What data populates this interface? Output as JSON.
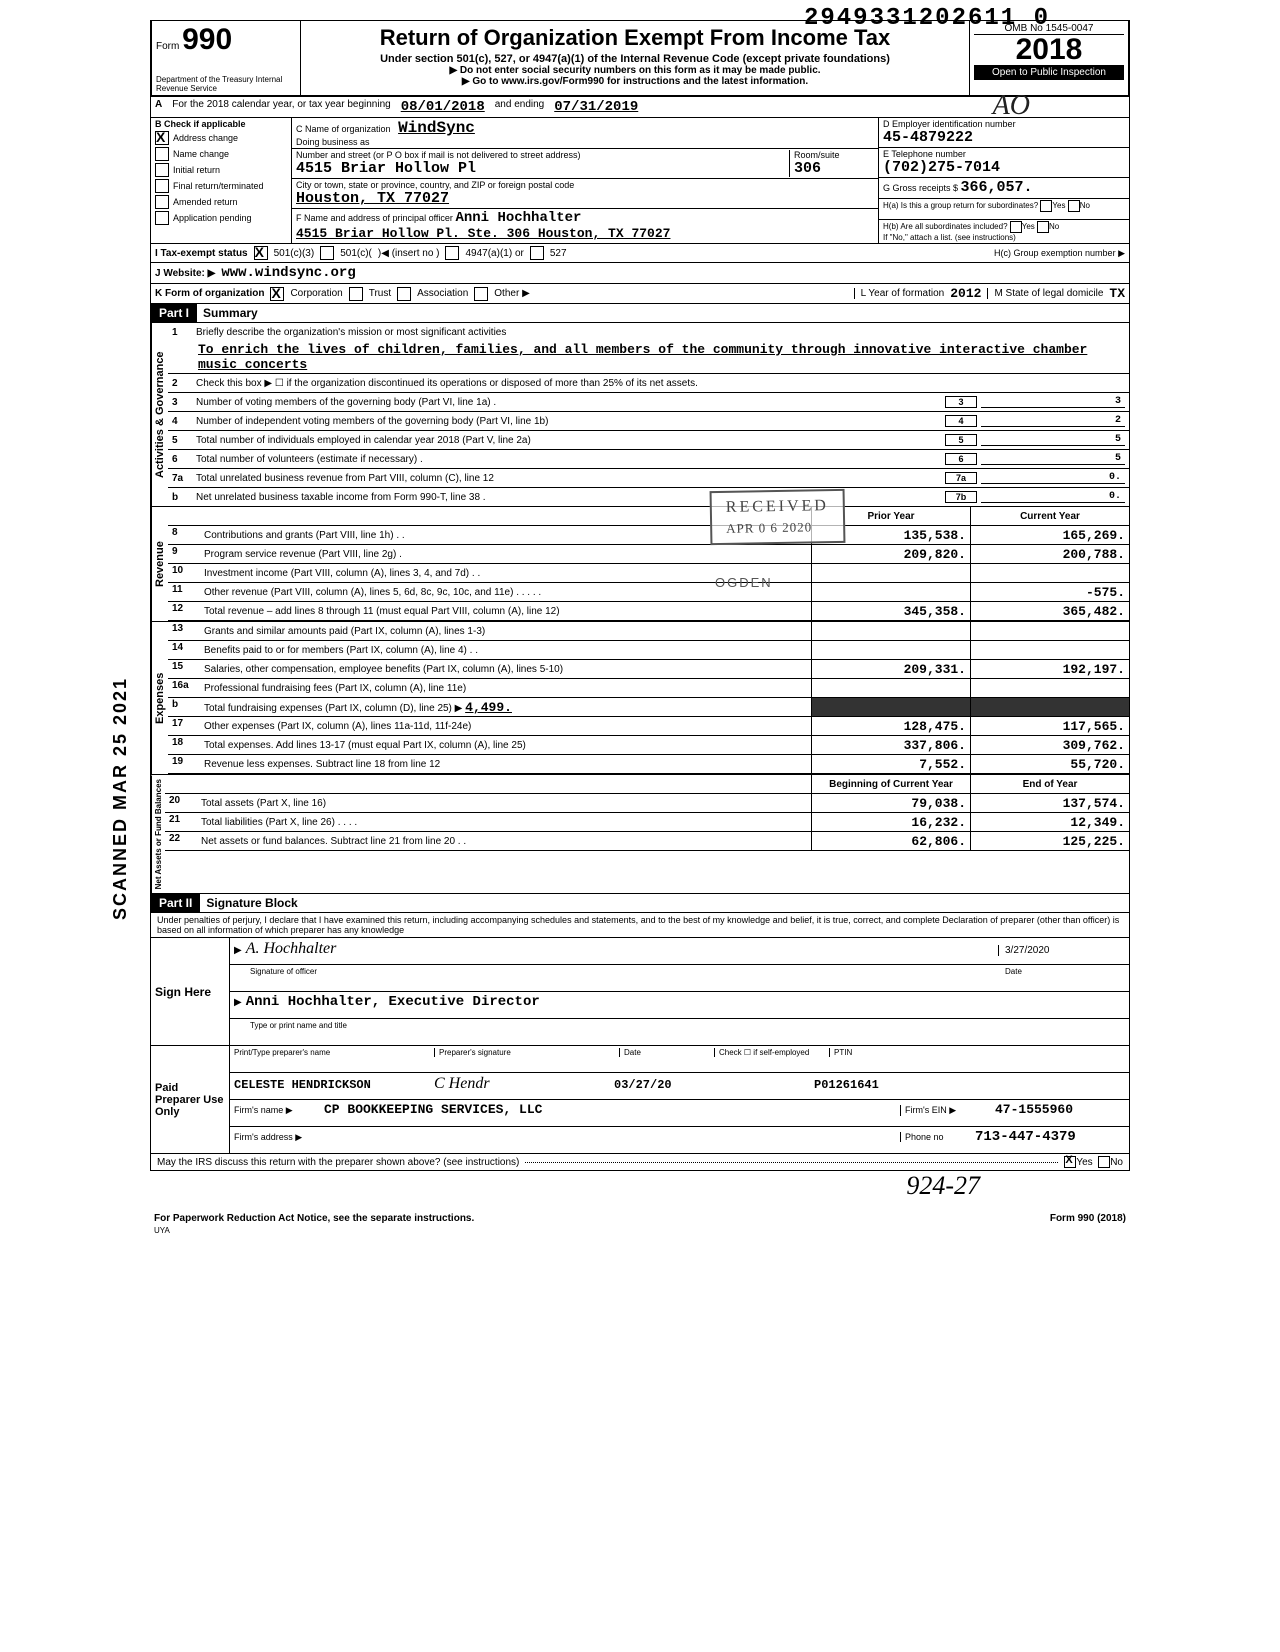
{
  "barcode": "2949331202611 0",
  "form": {
    "number": "990",
    "title": "Return of Organization Exempt From Income Tax",
    "subtitle": "Under section 501(c), 527, or 4947(a)(1) of the Internal Revenue Code (except private foundations)",
    "note1": "▶ Do not enter social security numbers on this form as it may be made public.",
    "note2": "▶ Go to www.irs.gov/Form990 for instructions and the latest information.",
    "omb": "OMB No 1545-0047",
    "year": "2018",
    "open_public": "Open to Public Inspection",
    "dept": "Department of the Treasury Internal Revenue Service"
  },
  "period": {
    "label_a": "A",
    "text": "For the 2018 calendar year, or tax year beginning",
    "begin": "08/01/2018",
    "mid": "and ending",
    "end": "07/31/2019"
  },
  "checks": {
    "header": "B  Check if applicable",
    "items": [
      {
        "label": "Address change",
        "checked": true
      },
      {
        "label": "Name change",
        "checked": false
      },
      {
        "label": "Initial return",
        "checked": false
      },
      {
        "label": "Final return/terminated",
        "checked": false
      },
      {
        "label": "Amended return",
        "checked": false
      },
      {
        "label": "Application pending",
        "checked": false
      }
    ]
  },
  "entity": {
    "c_label": "C Name of organization",
    "name": "WindSync",
    "dba_label": "Doing business as",
    "addr_label": "Number and street (or P O box if mail is not delivered to street address)",
    "room_label": "Room/suite",
    "street": "4515 Briar Hollow Pl",
    "room": "306",
    "city_label": "City or town, state or province, country, and ZIP or foreign postal code",
    "city": "Houston, TX 77027",
    "f_label": "F Name and address of principal officer",
    "officer_name": "Anni Hochhalter",
    "officer_addr": "4515 Briar Hollow Pl. Ste. 306 Houston, TX 77027"
  },
  "right_info": {
    "d_label": "D Employer identification number",
    "ein": "45-4879222",
    "e_label": "E Telephone number",
    "phone": "(702)275-7014",
    "g_label": "G Gross receipts $",
    "gross": "366,057.",
    "h_a": "H(a) Is this a group return for subordinates?",
    "h_b": "H(b) Are all subordinates included?",
    "h_note": "If \"No,\" attach a list. (see instructions)",
    "h_c": "H(c) Group exemption number ▶"
  },
  "row_i": {
    "label": "I   Tax-exempt status",
    "opt1": "501(c)(3)",
    "opt2": "501(c)(",
    "opt2b": ")◀ (insert no )",
    "opt3": "4947(a)(1) or",
    "opt4": "527"
  },
  "row_j": {
    "label": "J   Website: ▶",
    "value": "www.windsync.org"
  },
  "row_k": {
    "label": "K  Form of organization",
    "opts": [
      "Corporation",
      "Trust",
      "Association",
      "Other ▶"
    ],
    "l_label": "L  Year of formation",
    "l_value": "2012",
    "m_label": "M  State of legal domicile",
    "m_value": "TX"
  },
  "part1": {
    "header": "Part I",
    "title": "Summary"
  },
  "governance": {
    "sidebar": "Activities & Governance",
    "line1_label": "Briefly describe the organization's mission or most significant activities",
    "mission": "To enrich the lives of children, families, and all members of the community through innovative interactive chamber music concerts",
    "line2": "Check this box ▶ ☐ if the organization discontinued its operations or disposed of more than 25% of its net assets.",
    "lines": [
      {
        "n": "3",
        "desc": "Number of voting members of the governing body (Part VI, line 1a) .",
        "box": "3",
        "val": "3"
      },
      {
        "n": "4",
        "desc": "Number of independent voting members of the governing body (Part VI, line 1b)",
        "box": "4",
        "val": "2"
      },
      {
        "n": "5",
        "desc": "Total number of individuals employed in calendar year 2018 (Part V, line 2a)",
        "box": "5",
        "val": "5"
      },
      {
        "n": "6",
        "desc": "Total number of volunteers (estimate if necessary) .",
        "box": "6",
        "val": "5"
      },
      {
        "n": "7a",
        "desc": "Total unrelated business revenue from Part VIII, column (C), line 12",
        "box": "7a",
        "val": "0."
      },
      {
        "n": "b",
        "desc": "Net unrelated business taxable income from Form 990-T, line 38 .",
        "box": "7b",
        "val": "0."
      }
    ]
  },
  "stamps": {
    "received": "RECEIVED",
    "date": "APR 0 6 2020",
    "ogden": "OGDEN",
    "scanned": "SCANNED MAR 25 2021"
  },
  "revenue": {
    "sidebar": "Revenue",
    "header_prior": "Prior Year",
    "header_curr": "Current Year",
    "rows": [
      {
        "n": "8",
        "desc": "Contributions and grants (Part VIII, line 1h) . .",
        "prior": "135,538.",
        "curr": "165,269."
      },
      {
        "n": "9",
        "desc": "Program service revenue (Part VIII, line 2g) .",
        "prior": "209,820.",
        "curr": "200,788."
      },
      {
        "n": "10",
        "desc": "Investment income (Part VIII, column (A), lines 3, 4, and 7d) . .",
        "prior": "",
        "curr": ""
      },
      {
        "n": "11",
        "desc": "Other revenue (Part VIII, column (A), lines 5, 6d, 8c, 9c, 10c, and 11e) . . . . .",
        "prior": "",
        "curr": "-575."
      },
      {
        "n": "12",
        "desc": "Total revenue – add lines 8 through 11 (must equal Part VIII, column (A), line 12)",
        "prior": "345,358.",
        "curr": "365,482."
      }
    ]
  },
  "expenses": {
    "sidebar": "Expenses",
    "rows": [
      {
        "n": "13",
        "desc": "Grants and similar amounts paid (Part IX, column (A), lines 1-3)",
        "prior": "",
        "curr": ""
      },
      {
        "n": "14",
        "desc": "Benefits paid to or for members (Part IX, column (A), line 4) . .",
        "prior": "",
        "curr": ""
      },
      {
        "n": "15",
        "desc": "Salaries, other compensation, employee benefits (Part IX, column (A), lines 5-10)",
        "prior": "209,331.",
        "curr": "192,197."
      },
      {
        "n": "16a",
        "desc": "Professional fundraising fees (Part IX, column (A), line 11e)",
        "prior": "",
        "curr": ""
      },
      {
        "n": "b",
        "desc": "Total fundraising expenses (Part IX, column (D), line 25) ▶",
        "inline": "4,499.",
        "prior": "shaded",
        "curr": "shaded"
      },
      {
        "n": "17",
        "desc": "Other expenses (Part IX, column (A), lines 11a-11d, 11f-24e)",
        "prior": "128,475.",
        "curr": "117,565."
      },
      {
        "n": "18",
        "desc": "Total expenses. Add lines 13-17 (must equal Part IX, column (A), line 25)",
        "prior": "337,806.",
        "curr": "309,762."
      },
      {
        "n": "19",
        "desc": "Revenue less expenses. Subtract line 18 from line 12",
        "prior": "7,552.",
        "curr": "55,720."
      }
    ]
  },
  "netassets": {
    "sidebar": "Net Assets or Fund Balances",
    "header_prior": "Beginning of Current Year",
    "header_curr": "End of Year",
    "rows": [
      {
        "n": "20",
        "desc": "Total assets (Part X, line 16)",
        "prior": "79,038.",
        "curr": "137,574."
      },
      {
        "n": "21",
        "desc": "Total liabilities (Part X, line 26) . . . .",
        "prior": "16,232.",
        "curr": "12,349."
      },
      {
        "n": "22",
        "desc": "Net assets or fund balances. Subtract line 21 from line 20 . .",
        "prior": "62,806.",
        "curr": "125,225."
      }
    ]
  },
  "part2": {
    "header": "Part II",
    "title": "Signature Block",
    "penalty": "Under penalties of perjury, I declare that I have examined this return, including accompanying schedules and statements, and to the best of my knowledge and belief, it is true, correct, and complete Declaration of preparer (other than officer) is based on all information of which preparer has any knowledge"
  },
  "sign": {
    "label": "Sign Here",
    "sig_label": "Signature of officer",
    "date_label": "Date",
    "date": "3/27/2020",
    "name": "Anni Hochhalter, Executive Director",
    "name_label": "Type or print name and title"
  },
  "preparer": {
    "label": "Paid Preparer Use Only",
    "name_label": "Print/Type preparer's name",
    "name": "CELESTE HENDRICKSON",
    "sig_label": "Preparer's signature",
    "date_label": "Date",
    "date": "03/27/20",
    "check_label": "Check ☐ if self-employed",
    "ptin_label": "PTIN",
    "ptin": "P01261641",
    "firm_label": "Firm's name ▶",
    "firm": "CP BOOKKEEPING SERVICES, LLC",
    "ein_label": "Firm's EIN ▶",
    "ein": "47-1555960",
    "addr_label": "Firm's address ▶",
    "phone_label": "Phone no",
    "phone": "713-447-4379"
  },
  "discuss": {
    "text": "May the IRS discuss this return with the preparer shown above? (see instructions)",
    "yes": "Yes",
    "no": "No"
  },
  "footer": {
    "left": "For Paperwork Reduction Act Notice, see the separate instructions.",
    "uya": "UYA",
    "right": "Form 990 (2018)"
  },
  "handwritten": "924-27"
}
